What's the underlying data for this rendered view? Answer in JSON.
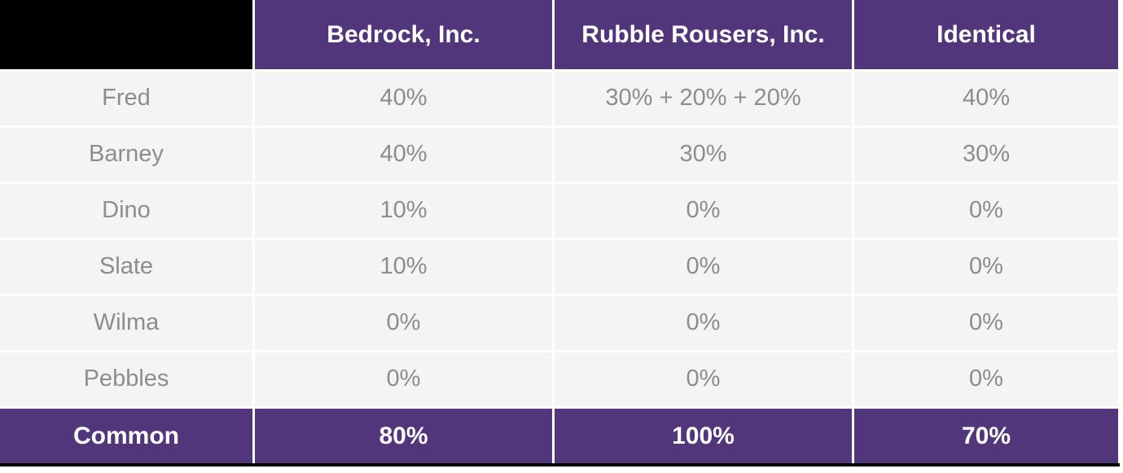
{
  "table": {
    "header": [
      "",
      "Bedrock, Inc.",
      "Rubble Rousers, Inc.",
      "Identical"
    ],
    "rows": [
      {
        "label": "Fred",
        "values": [
          "40%",
          "30% + 20% + 20%",
          "40%"
        ]
      },
      {
        "label": "Barney",
        "values": [
          "40%",
          "30%",
          "30%"
        ]
      },
      {
        "label": "Dino",
        "values": [
          "10%",
          "0%",
          "0%"
        ]
      },
      {
        "label": "Slate",
        "values": [
          "10%",
          "0%",
          "0%"
        ]
      },
      {
        "label": "Wilma",
        "values": [
          "0%",
          "0%",
          "0%"
        ]
      },
      {
        "label": "Pebbles",
        "values": [
          "0%",
          "0%",
          "0%"
        ]
      }
    ],
    "footer": {
      "label": "Common",
      "values": [
        "80%",
        "100%",
        "70%"
      ]
    }
  },
  "colors": {
    "header_bg": "#52367C",
    "footer_bg": "#52367C",
    "row_bg": "#F4F4F6",
    "body_text": "#8D8D8D",
    "header_text": "#FFFFFF",
    "corner_blackout": "#000000",
    "bottom_border": "#000000"
  }
}
